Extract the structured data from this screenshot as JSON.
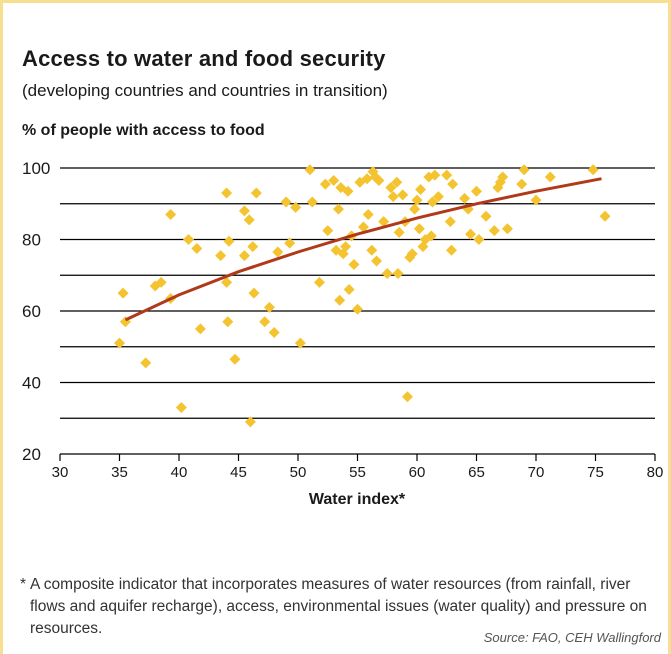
{
  "title": "Access to water and food security",
  "subtitle": "(developing countries and countries in transition)",
  "footnote_marker": "*",
  "footnote": "A composite indicator that incorporates measures of water resources (from rainfall, river flows and aquifer recharge), access, environmental issues (water quality) and pressure on resources.",
  "source": "Source: FAO, CEH Wallingford",
  "colors": {
    "points": "#f4c430",
    "trend": "#b0391a",
    "frame": "#f6e08f",
    "grid": "#000000"
  },
  "chart_data": {
    "type": "scatter",
    "ylabel": "% of people with access to food",
    "xlabel": "Water index*",
    "xlim": [
      30,
      80
    ],
    "ylim": [
      20,
      100
    ],
    "x_ticks": [
      30,
      35,
      40,
      45,
      50,
      55,
      60,
      65,
      70,
      75,
      80
    ],
    "y_tick_labels": [
      20,
      40,
      60,
      80,
      100
    ],
    "gridlines_y": [
      30,
      40,
      50,
      60,
      70,
      80,
      90,
      100
    ],
    "points": [
      {
        "x": 35.0,
        "y": 51
      },
      {
        "x": 35.3,
        "y": 65
      },
      {
        "x": 35.5,
        "y": 57
      },
      {
        "x": 37.2,
        "y": 45.5
      },
      {
        "x": 38.0,
        "y": 67
      },
      {
        "x": 38.5,
        "y": 68
      },
      {
        "x": 39.3,
        "y": 87
      },
      {
        "x": 39.3,
        "y": 63.5
      },
      {
        "x": 40.2,
        "y": 33
      },
      {
        "x": 40.8,
        "y": 80
      },
      {
        "x": 41.5,
        "y": 77.5
      },
      {
        "x": 41.8,
        "y": 55
      },
      {
        "x": 43.5,
        "y": 75.5
      },
      {
        "x": 44.0,
        "y": 93
      },
      {
        "x": 44.0,
        "y": 68
      },
      {
        "x": 44.1,
        "y": 57
      },
      {
        "x": 44.2,
        "y": 79.5
      },
      {
        "x": 44.7,
        "y": 46.5
      },
      {
        "x": 45.5,
        "y": 88
      },
      {
        "x": 45.5,
        "y": 75.5
      },
      {
        "x": 45.9,
        "y": 85.5
      },
      {
        "x": 46.0,
        "y": 29
      },
      {
        "x": 46.2,
        "y": 78
      },
      {
        "x": 46.3,
        "y": 65
      },
      {
        "x": 46.5,
        "y": 93
      },
      {
        "x": 47.2,
        "y": 57
      },
      {
        "x": 47.6,
        "y": 61
      },
      {
        "x": 48.0,
        "y": 54
      },
      {
        "x": 48.3,
        "y": 76.5
      },
      {
        "x": 49.0,
        "y": 90.5
      },
      {
        "x": 49.3,
        "y": 79
      },
      {
        "x": 49.8,
        "y": 89
      },
      {
        "x": 50.2,
        "y": 51
      },
      {
        "x": 51.0,
        "y": 99.5
      },
      {
        "x": 51.2,
        "y": 90.5
      },
      {
        "x": 51.8,
        "y": 68
      },
      {
        "x": 52.3,
        "y": 95.5
      },
      {
        "x": 52.5,
        "y": 82.5
      },
      {
        "x": 53.0,
        "y": 96.5
      },
      {
        "x": 53.2,
        "y": 77
      },
      {
        "x": 53.4,
        "y": 88.5
      },
      {
        "x": 53.5,
        "y": 63
      },
      {
        "x": 53.6,
        "y": 94.5
      },
      {
        "x": 53.8,
        "y": 76
      },
      {
        "x": 54.0,
        "y": 78
      },
      {
        "x": 54.2,
        "y": 93.5
      },
      {
        "x": 54.3,
        "y": 66
      },
      {
        "x": 54.5,
        "y": 81
      },
      {
        "x": 54.7,
        "y": 73
      },
      {
        "x": 55.0,
        "y": 60.5
      },
      {
        "x": 55.2,
        "y": 96
      },
      {
        "x": 55.5,
        "y": 83.5
      },
      {
        "x": 55.8,
        "y": 97
      },
      {
        "x": 55.9,
        "y": 87
      },
      {
        "x": 56.2,
        "y": 77
      },
      {
        "x": 56.3,
        "y": 99
      },
      {
        "x": 56.5,
        "y": 97.5
      },
      {
        "x": 56.6,
        "y": 74
      },
      {
        "x": 56.8,
        "y": 96.5
      },
      {
        "x": 57.2,
        "y": 85
      },
      {
        "x": 57.5,
        "y": 70.5
      },
      {
        "x": 57.8,
        "y": 94.5
      },
      {
        "x": 58.0,
        "y": 92
      },
      {
        "x": 58.3,
        "y": 96
      },
      {
        "x": 58.4,
        "y": 70.5
      },
      {
        "x": 58.5,
        "y": 82
      },
      {
        "x": 58.8,
        "y": 92.5
      },
      {
        "x": 59.0,
        "y": 85
      },
      {
        "x": 59.2,
        "y": 36
      },
      {
        "x": 59.4,
        "y": 75
      },
      {
        "x": 59.6,
        "y": 76
      },
      {
        "x": 59.8,
        "y": 88.5
      },
      {
        "x": 60.0,
        "y": 91
      },
      {
        "x": 60.2,
        "y": 83
      },
      {
        "x": 60.3,
        "y": 94
      },
      {
        "x": 60.5,
        "y": 78
      },
      {
        "x": 60.7,
        "y": 80
      },
      {
        "x": 61.0,
        "y": 97.5
      },
      {
        "x": 61.2,
        "y": 81
      },
      {
        "x": 61.3,
        "y": 90.5
      },
      {
        "x": 61.5,
        "y": 98
      },
      {
        "x": 61.8,
        "y": 92
      },
      {
        "x": 62.5,
        "y": 98
      },
      {
        "x": 62.8,
        "y": 85
      },
      {
        "x": 62.9,
        "y": 77
      },
      {
        "x": 63.0,
        "y": 95.5
      },
      {
        "x": 64.0,
        "y": 91.5
      },
      {
        "x": 64.3,
        "y": 88.5
      },
      {
        "x": 64.5,
        "y": 81.5
      },
      {
        "x": 65.0,
        "y": 93.5
      },
      {
        "x": 65.2,
        "y": 80
      },
      {
        "x": 65.8,
        "y": 86.5
      },
      {
        "x": 66.5,
        "y": 82.5
      },
      {
        "x": 66.8,
        "y": 94.5
      },
      {
        "x": 67.0,
        "y": 96
      },
      {
        "x": 67.2,
        "y": 97.5
      },
      {
        "x": 67.6,
        "y": 83
      },
      {
        "x": 68.8,
        "y": 95.5
      },
      {
        "x": 69.0,
        "y": 99.5
      },
      {
        "x": 70.0,
        "y": 91
      },
      {
        "x": 71.2,
        "y": 97.5
      },
      {
        "x": 74.8,
        "y": 99.5
      },
      {
        "x": 75.8,
        "y": 86.5
      }
    ],
    "trend": {
      "type": "logarithmic",
      "points": [
        {
          "x": 35.5,
          "y": 57.5
        },
        {
          "x": 40,
          "y": 64.5
        },
        {
          "x": 45,
          "y": 71
        },
        {
          "x": 50,
          "y": 76.5
        },
        {
          "x": 55,
          "y": 81.5
        },
        {
          "x": 60,
          "y": 86
        },
        {
          "x": 65,
          "y": 90
        },
        {
          "x": 70,
          "y": 93.5
        },
        {
          "x": 75.5,
          "y": 97
        }
      ]
    }
  }
}
